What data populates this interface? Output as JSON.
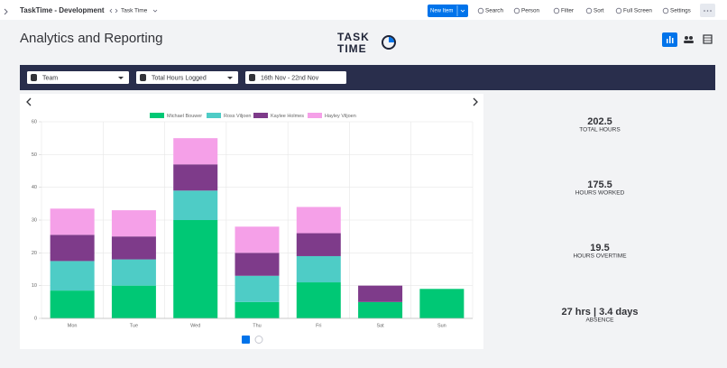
{
  "top_bar": {
    "workspace": "TaskTime - Development",
    "board": "Task Time",
    "new_item": "New Item",
    "actions": [
      "Search",
      "Person",
      "Filter",
      "Sort",
      "Full Screen",
      "Settings"
    ]
  },
  "header": {
    "title": "Analytics and Reporting",
    "logo": [
      "TASK",
      "TIME"
    ]
  },
  "filters": [
    "Team",
    "Total Hours Logged",
    "16th Nov - 22nd Nov"
  ],
  "chart_data": {
    "type": "bar",
    "stacked": true,
    "grid": true,
    "categories": [
      "Mon",
      "Tue",
      "Wed",
      "Thu",
      "Fri",
      "Sat",
      "Sun"
    ],
    "series": [
      {
        "name": "Michael Bouwer",
        "color": "#00c875",
        "values": [
          8.5,
          10,
          30,
          5,
          11,
          5,
          9
        ]
      },
      {
        "name": "Ross Viljoen",
        "color": "#4eccc6",
        "values": [
          9,
          8,
          9,
          8,
          8,
          0,
          0
        ]
      },
      {
        "name": "Kaylee Holmes",
        "color": "#7e3b8a",
        "values": [
          8,
          7,
          8,
          7,
          7,
          5,
          0
        ]
      },
      {
        "name": "Hayley Viljoen",
        "color": "#f5a0e8",
        "values": [
          8,
          8,
          8,
          8,
          8,
          0,
          0
        ]
      }
    ],
    "ylim": [
      0,
      60
    ],
    "yticks": [
      0,
      10,
      20,
      30,
      40,
      50,
      60
    ]
  },
  "stats": [
    {
      "value": 202.5,
      "label": "TOTAL HOURS"
    },
    {
      "value": 175.5,
      "label": "HOURS WORKED"
    },
    {
      "value": 19.5,
      "label": "HOURS OVERTIME"
    },
    {
      "value": "27 hrs | 3.4 days",
      "label": "ABSENCE"
    }
  ]
}
